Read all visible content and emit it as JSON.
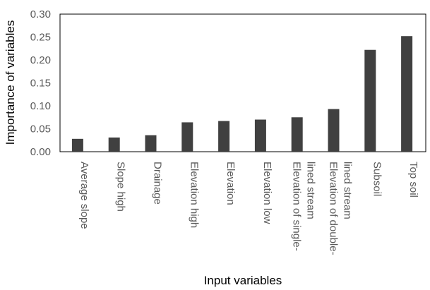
{
  "chart_data": {
    "type": "bar",
    "title": "",
    "xlabel": "Input variables",
    "ylabel": "Importance of variables",
    "ylim": [
      0,
      0.3
    ],
    "yticks": [
      "0.00",
      "0.05",
      "0.10",
      "0.15",
      "0.20",
      "0.25",
      "0.30"
    ],
    "ytick_values": [
      0,
      0.05,
      0.1,
      0.15,
      0.2,
      0.25,
      0.3
    ],
    "grid": false,
    "legend": "none",
    "bar_color": "#404040",
    "categories": [
      [
        "Average slope"
      ],
      [
        "Slope high"
      ],
      [
        "Drainage"
      ],
      [
        "Elevation high"
      ],
      [
        "Elevation"
      ],
      [
        "Elevation low"
      ],
      [
        "Elevation of single-",
        "lined stream"
      ],
      [
        "Elevation of double-",
        "lined stream"
      ],
      [
        "Subsoil"
      ],
      [
        "Top soil"
      ]
    ],
    "values": [
      0.028,
      0.031,
      0.036,
      0.064,
      0.067,
      0.07,
      0.075,
      0.093,
      0.222,
      0.252
    ]
  }
}
